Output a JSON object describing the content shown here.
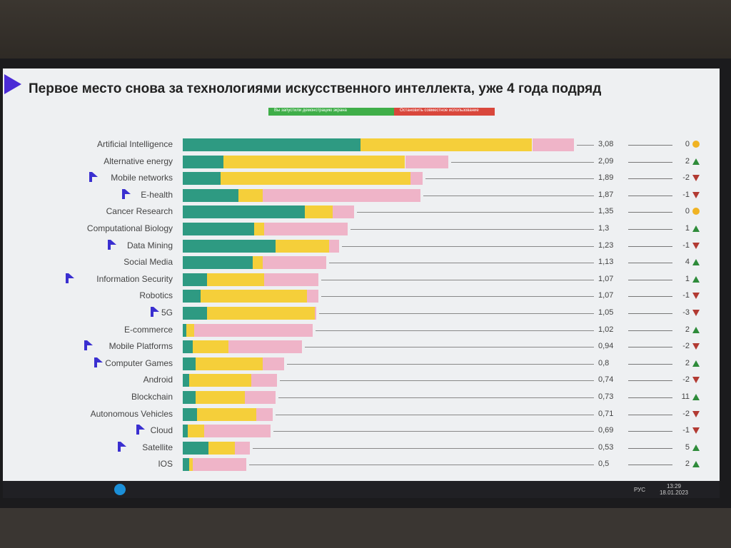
{
  "slide": {
    "title": "Первое место снова за технологиями искусственного интеллекта, уже 4 года подряд",
    "share_banner": {
      "status": "Вы запустили демонстрацию экрана",
      "stop": "Остановить совместное использование"
    }
  },
  "taskbar": {
    "lang": "РУС",
    "time": "13:29",
    "date": "18.01.2023"
  },
  "colors": {
    "green": "#2e9a82",
    "yellow": "#f5cf3a",
    "pink": "#efb4c8",
    "up": "#2e8b3a",
    "down": "#b23a32",
    "same": "#f0b323"
  },
  "chart_data": {
    "type": "bar",
    "orientation": "horizontal",
    "stacked": true,
    "title": "Первое место снова за технологиями искусственного интеллекта, уже 4 года подряд",
    "categories": [
      "Artificial Intelligence",
      "Alternative energy",
      "Mobile networks",
      "E-health",
      "Cancer Research",
      "Computational Biology",
      "Data Mining",
      "Social Media",
      "Information Security",
      "Robotics",
      "5G",
      "E-commerce",
      "Mobile Platforms",
      "Computer Games",
      "Android",
      "Blockchain",
      "Autonomous Vehicles",
      "Cloud",
      "Satellite",
      "IOS"
    ],
    "series": [
      {
        "color": "#2e9a82",
        "values": [
          1.4,
          0.32,
          0.3,
          0.44,
          0.96,
          0.56,
          0.73,
          0.55,
          0.19,
          0.14,
          0.19,
          0.03,
          0.08,
          0.1,
          0.05,
          0.1,
          0.11,
          0.04,
          0.2,
          0.05
        ]
      },
      {
        "color": "#f5cf3a",
        "values": [
          1.35,
          1.43,
          1.49,
          0.19,
          0.22,
          0.08,
          0.42,
          0.08,
          0.45,
          0.84,
          0.85,
          0.06,
          0.28,
          0.53,
          0.49,
          0.39,
          0.47,
          0.13,
          0.21,
          0.03
        ]
      },
      {
        "color": "#efb4c8",
        "values": [
          0.33,
          0.34,
          0.1,
          1.24,
          0.17,
          0.66,
          0.08,
          0.5,
          0.43,
          0.09,
          0.01,
          0.93,
          0.58,
          0.17,
          0.2,
          0.24,
          0.13,
          0.52,
          0.12,
          0.42
        ]
      }
    ],
    "totals": [
      "3,08",
      "2,09",
      "1,89",
      "1,87",
      "1,35",
      "1,3",
      "1,23",
      "1,13",
      "1,07",
      "1,07",
      "1,05",
      "1,02",
      "0,94",
      "0,8",
      "0,74",
      "0,73",
      "0,71",
      "0,69",
      "0,53",
      "0,5"
    ],
    "total_values": [
      3.08,
      2.09,
      1.89,
      1.87,
      1.35,
      1.3,
      1.23,
      1.13,
      1.07,
      1.07,
      1.05,
      1.02,
      0.94,
      0.8,
      0.74,
      0.73,
      0.71,
      0.69,
      0.53,
      0.5
    ],
    "rank_change": [
      "0",
      "2",
      "-2",
      "-1",
      "0",
      "1",
      "-1",
      "4",
      "1",
      "-1",
      "-3",
      "2",
      "-2",
      "2",
      "-2",
      "11",
      "-2",
      "-1",
      "5",
      "2"
    ],
    "trend": [
      "same",
      "up",
      "down",
      "down",
      "same",
      "up",
      "down",
      "up",
      "up",
      "down",
      "down",
      "up",
      "down",
      "up",
      "down",
      "up",
      "down",
      "down",
      "up",
      "up"
    ],
    "logo_marked": [
      false,
      false,
      true,
      true,
      false,
      false,
      true,
      false,
      true,
      false,
      true,
      false,
      true,
      true,
      false,
      false,
      false,
      true,
      true,
      false
    ],
    "xlim": [
      0,
      3.2
    ],
    "grid": false,
    "legend": "none"
  }
}
